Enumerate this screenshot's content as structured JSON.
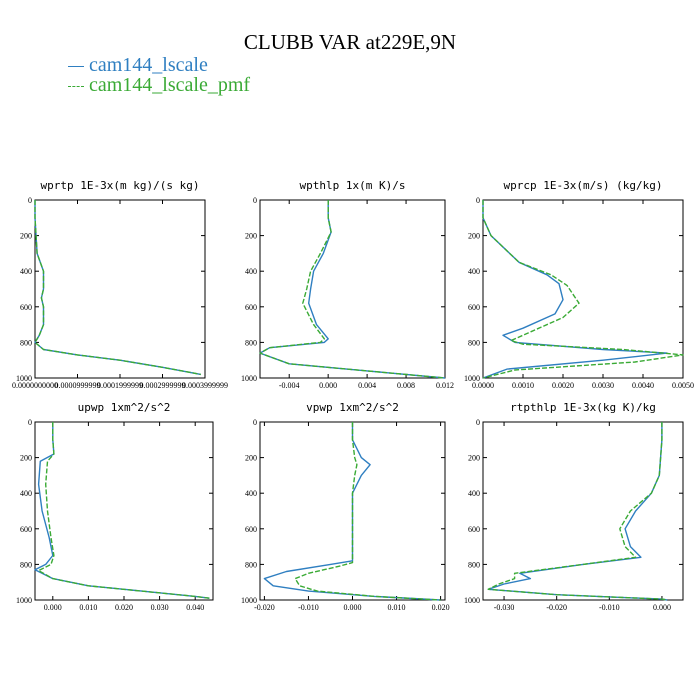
{
  "title": "CLUBB VAR at229E,9N",
  "legend": [
    {
      "label": "cam144_lscale",
      "color": "#2f7fc1",
      "style": "solid"
    },
    {
      "label": "cam144_lscale_pmf",
      "color": "#3aaa35",
      "style": "dashed"
    }
  ],
  "chart_data": [
    {
      "type": "line",
      "title": "wprtp  1E-3x(m kg)/(s kg)",
      "xlim": [
        0,
        0.0004
      ],
      "ylim": [
        1000,
        0
      ],
      "xticks": [
        0,
        0.0001,
        0.0002,
        0.0003,
        0.0004
      ],
      "xtick_labels": [
        "0.0000000000",
        "0.0000999999",
        "0.0001999999",
        "0.0002999999",
        "0.0003999999"
      ],
      "yticks": [
        0,
        200,
        400,
        600,
        800,
        1000
      ],
      "series": [
        {
          "name": "cam144_lscale",
          "x": [
            0.0,
            0.0,
            5e-06,
            2e-05,
            2e-05,
            1.5e-05,
            2e-05,
            2e-05,
            1e-05,
            0.0,
            2e-05,
            0.0001,
            0.0002,
            0.0003,
            0.00039
          ],
          "y": [
            0,
            100,
            300,
            400,
            500,
            550,
            600,
            700,
            760,
            800,
            840,
            870,
            900,
            940,
            980
          ]
        },
        {
          "name": "cam144_lscale_pmf",
          "x": [
            0.0,
            0.0,
            5e-06,
            2e-05,
            2e-05,
            1.5e-05,
            2e-05,
            2e-05,
            1e-05,
            0.0,
            2e-05,
            0.0001,
            0.0002,
            0.0003,
            0.00039
          ],
          "y": [
            0,
            100,
            300,
            400,
            500,
            550,
            600,
            700,
            760,
            800,
            840,
            870,
            900,
            940,
            980
          ]
        }
      ]
    },
    {
      "type": "line",
      "title": "wpthlp  1x(m K)/s",
      "xlim": [
        -0.007,
        0.012
      ],
      "ylim": [
        1000,
        0
      ],
      "xticks": [
        -0.004,
        0.0,
        0.004,
        0.008,
        0.012
      ],
      "xtick_labels": [
        "-0.004",
        "0.000",
        "0.004",
        "0.008",
        "0.012"
      ],
      "yticks": [
        0,
        200,
        400,
        600,
        800,
        1000
      ],
      "series": [
        {
          "name": "cam144_lscale",
          "x": [
            0.0,
            0.0,
            0.0003,
            -0.0005,
            -0.0015,
            -0.0018,
            -0.002,
            -0.0012,
            0.0,
            -0.0004,
            -0.006,
            -0.007,
            -0.004,
            0.004,
            0.012
          ],
          "y": [
            0,
            100,
            180,
            300,
            400,
            500,
            580,
            700,
            780,
            800,
            830,
            860,
            920,
            960,
            1000
          ]
        },
        {
          "name": "cam144_lscale_pmf",
          "x": [
            0.0,
            0.0,
            0.0003,
            -0.0008,
            -0.0018,
            -0.0022,
            -0.0026,
            -0.0015,
            -0.0004,
            -0.0008,
            -0.006,
            -0.007,
            -0.004,
            0.004,
            0.012
          ],
          "y": [
            0,
            100,
            180,
            300,
            400,
            500,
            580,
            700,
            780,
            800,
            830,
            860,
            920,
            960,
            1000
          ]
        }
      ]
    },
    {
      "type": "line",
      "title": "wprcp  1E-3x(m/s) (kg/kg)",
      "xlim": [
        0,
        0.005
      ],
      "ylim": [
        1000,
        0
      ],
      "xticks": [
        0,
        0.001,
        0.002,
        0.003,
        0.004,
        0.005
      ],
      "xtick_labels": [
        "0.0000",
        "0.0010",
        "0.0020",
        "0.0030",
        "0.0040",
        "0.0050"
      ],
      "yticks": [
        0,
        200,
        400,
        600,
        800,
        1000
      ],
      "series": [
        {
          "name": "cam144_lscale",
          "x": [
            0.0,
            0.0,
            0.0002,
            0.0009,
            0.0016,
            0.0019,
            0.002,
            0.0018,
            0.001,
            0.0005,
            0.0008,
            0.003,
            0.0046,
            0.003,
            0.0006,
            0.0
          ],
          "y": [
            0,
            100,
            200,
            350,
            420,
            470,
            560,
            640,
            720,
            760,
            800,
            840,
            860,
            900,
            950,
            1000
          ]
        },
        {
          "name": "cam144_lscale_pmf",
          "x": [
            0.0,
            0.0,
            0.0002,
            0.0009,
            0.0017,
            0.0021,
            0.0024,
            0.002,
            0.0012,
            0.0007,
            0.001,
            0.0035,
            0.005,
            0.0038,
            0.0008,
            0.0
          ],
          "y": [
            0,
            100,
            200,
            350,
            420,
            480,
            580,
            660,
            740,
            790,
            810,
            840,
            870,
            910,
            955,
            1000
          ]
        }
      ]
    },
    {
      "type": "line",
      "title": "upwp  1xm^2/s^2",
      "xlim": [
        -0.005,
        0.045
      ],
      "ylim": [
        1000,
        0
      ],
      "xticks": [
        0,
        0.01,
        0.02,
        0.03,
        0.04
      ],
      "xtick_labels": [
        "0.000",
        "0.010",
        "0.020",
        "0.030",
        "0.040"
      ],
      "yticks": [
        0,
        200,
        400,
        600,
        800,
        1000
      ],
      "series": [
        {
          "name": "cam144_lscale",
          "x": [
            0.0,
            0.0,
            0.0003,
            -0.0035,
            -0.004,
            -0.003,
            -0.001,
            0.0,
            -0.002,
            -0.005,
            0.0,
            0.01,
            0.025,
            0.04,
            0.044
          ],
          "y": [
            0,
            100,
            180,
            220,
            350,
            500,
            650,
            750,
            800,
            830,
            880,
            920,
            950,
            980,
            990
          ]
        },
        {
          "name": "cam144_lscale_pmf",
          "x": [
            0.0,
            0.0,
            0.0003,
            -0.0015,
            -0.002,
            -0.0015,
            -0.0005,
            0.0003,
            -0.0005,
            -0.004,
            0.0,
            0.01,
            0.025,
            0.04,
            0.044
          ],
          "y": [
            0,
            100,
            180,
            220,
            350,
            500,
            650,
            750,
            800,
            835,
            880,
            920,
            950,
            980,
            990
          ]
        }
      ]
    },
    {
      "type": "line",
      "title": "vpwp  1xm^2/s^2",
      "xlim": [
        -0.021,
        0.021
      ],
      "ylim": [
        1000,
        0
      ],
      "xticks": [
        -0.02,
        -0.01,
        0.0,
        0.01,
        0.02
      ],
      "xtick_labels": [
        "-0.020",
        "-0.010",
        "0.000",
        "0.010",
        "0.020"
      ],
      "yticks": [
        0,
        200,
        400,
        600,
        800,
        1000
      ],
      "series": [
        {
          "name": "cam144_lscale",
          "x": [
            0.0,
            0.0,
            0.002,
            0.004,
            0.002,
            0.0,
            0.0,
            -0.005,
            -0.015,
            -0.02,
            -0.018,
            -0.01,
            0.005,
            0.02
          ],
          "y": [
            0,
            100,
            200,
            240,
            300,
            400,
            780,
            800,
            840,
            880,
            920,
            950,
            980,
            1000
          ]
        },
        {
          "name": "cam144_lscale_pmf",
          "x": [
            0.0,
            0.0,
            0.0005,
            0.001,
            0.0005,
            0.0,
            0.0,
            -0.003,
            -0.01,
            -0.013,
            -0.012,
            -0.008,
            0.005,
            0.02
          ],
          "y": [
            0,
            100,
            200,
            240,
            300,
            400,
            790,
            810,
            850,
            880,
            920,
            950,
            980,
            1000
          ]
        }
      ]
    },
    {
      "type": "line",
      "title": "rtpthlp  1E-3x(kg K)/kg",
      "xlim": [
        -0.034,
        0.004
      ],
      "ylim": [
        1000,
        0
      ],
      "xticks": [
        -0.03,
        -0.02,
        -0.01,
        0.0
      ],
      "xtick_labels": [
        "-0.030",
        "-0.020",
        "-0.010",
        "0.000"
      ],
      "yticks": [
        0,
        200,
        400,
        600,
        800,
        1000
      ],
      "series": [
        {
          "name": "cam144_lscale",
          "x": [
            0.0,
            0.0,
            -0.0005,
            -0.002,
            -0.005,
            -0.007,
            -0.006,
            -0.004,
            -0.015,
            -0.027,
            -0.025,
            -0.03,
            -0.033,
            -0.02,
            0.0,
            0.001
          ],
          "y": [
            0,
            100,
            300,
            400,
            500,
            600,
            700,
            760,
            800,
            850,
            880,
            910,
            940,
            970,
            995,
            1000
          ]
        },
        {
          "name": "cam144_lscale_pmf",
          "x": [
            0.0,
            0.0,
            -0.0005,
            -0.002,
            -0.006,
            -0.008,
            -0.007,
            -0.005,
            -0.015,
            -0.028,
            -0.028,
            -0.031,
            -0.033,
            -0.02,
            0.0,
            0.001
          ],
          "y": [
            0,
            100,
            300,
            400,
            500,
            600,
            700,
            760,
            800,
            850,
            880,
            910,
            940,
            970,
            995,
            1000
          ]
        }
      ]
    }
  ]
}
